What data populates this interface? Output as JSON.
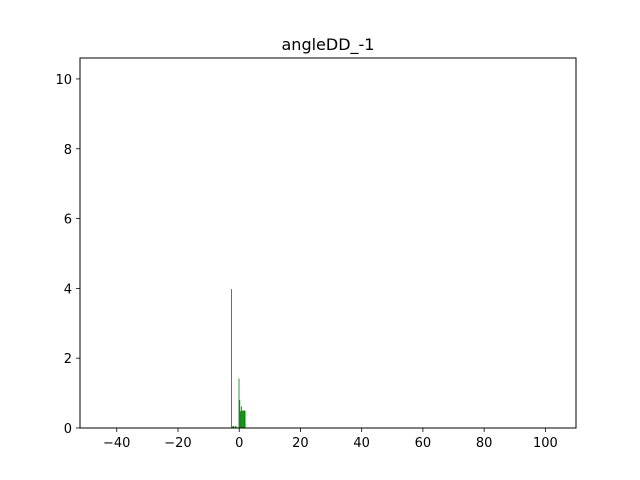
{
  "chart_data": {
    "type": "bar",
    "title": "angleDD_-1",
    "xlabel": "",
    "ylabel": "",
    "xlim": [
      -52,
      110
    ],
    "ylim": [
      0,
      10.6
    ],
    "grid": false,
    "bar_color": "#008000",
    "x_ticks": [
      -40,
      -20,
      0,
      20,
      40,
      60,
      80,
      100
    ],
    "x_tick_labels": [
      "−40",
      "−20",
      "0",
      "20",
      "40",
      "60",
      "80",
      "100"
    ],
    "y_ticks": [
      0,
      2,
      4,
      6,
      8,
      10
    ],
    "y_tick_labels": [
      "0",
      "2",
      "4",
      "6",
      "8",
      "10"
    ],
    "bars": [
      {
        "x": -2.65,
        "width": 0.25,
        "value": 3.98
      },
      {
        "x": -2.3,
        "width": 0.6,
        "value": 0.05
      },
      {
        "x": -1.5,
        "width": 0.6,
        "value": 0.05
      },
      {
        "x": -0.2,
        "width": 0.25,
        "value": 1.42
      },
      {
        "x": 0.05,
        "width": 0.2,
        "value": 0.8
      },
      {
        "x": 0.25,
        "width": 0.3,
        "value": 0.48
      },
      {
        "x": 0.55,
        "width": 0.3,
        "value": 0.62
      },
      {
        "x": 0.85,
        "width": 0.3,
        "value": 0.5
      },
      {
        "x": 1.15,
        "width": 0.3,
        "value": 0.5
      },
      {
        "x": 1.45,
        "width": 0.3,
        "value": 0.5
      },
      {
        "x": 1.75,
        "width": 0.3,
        "value": 0.5
      }
    ]
  }
}
